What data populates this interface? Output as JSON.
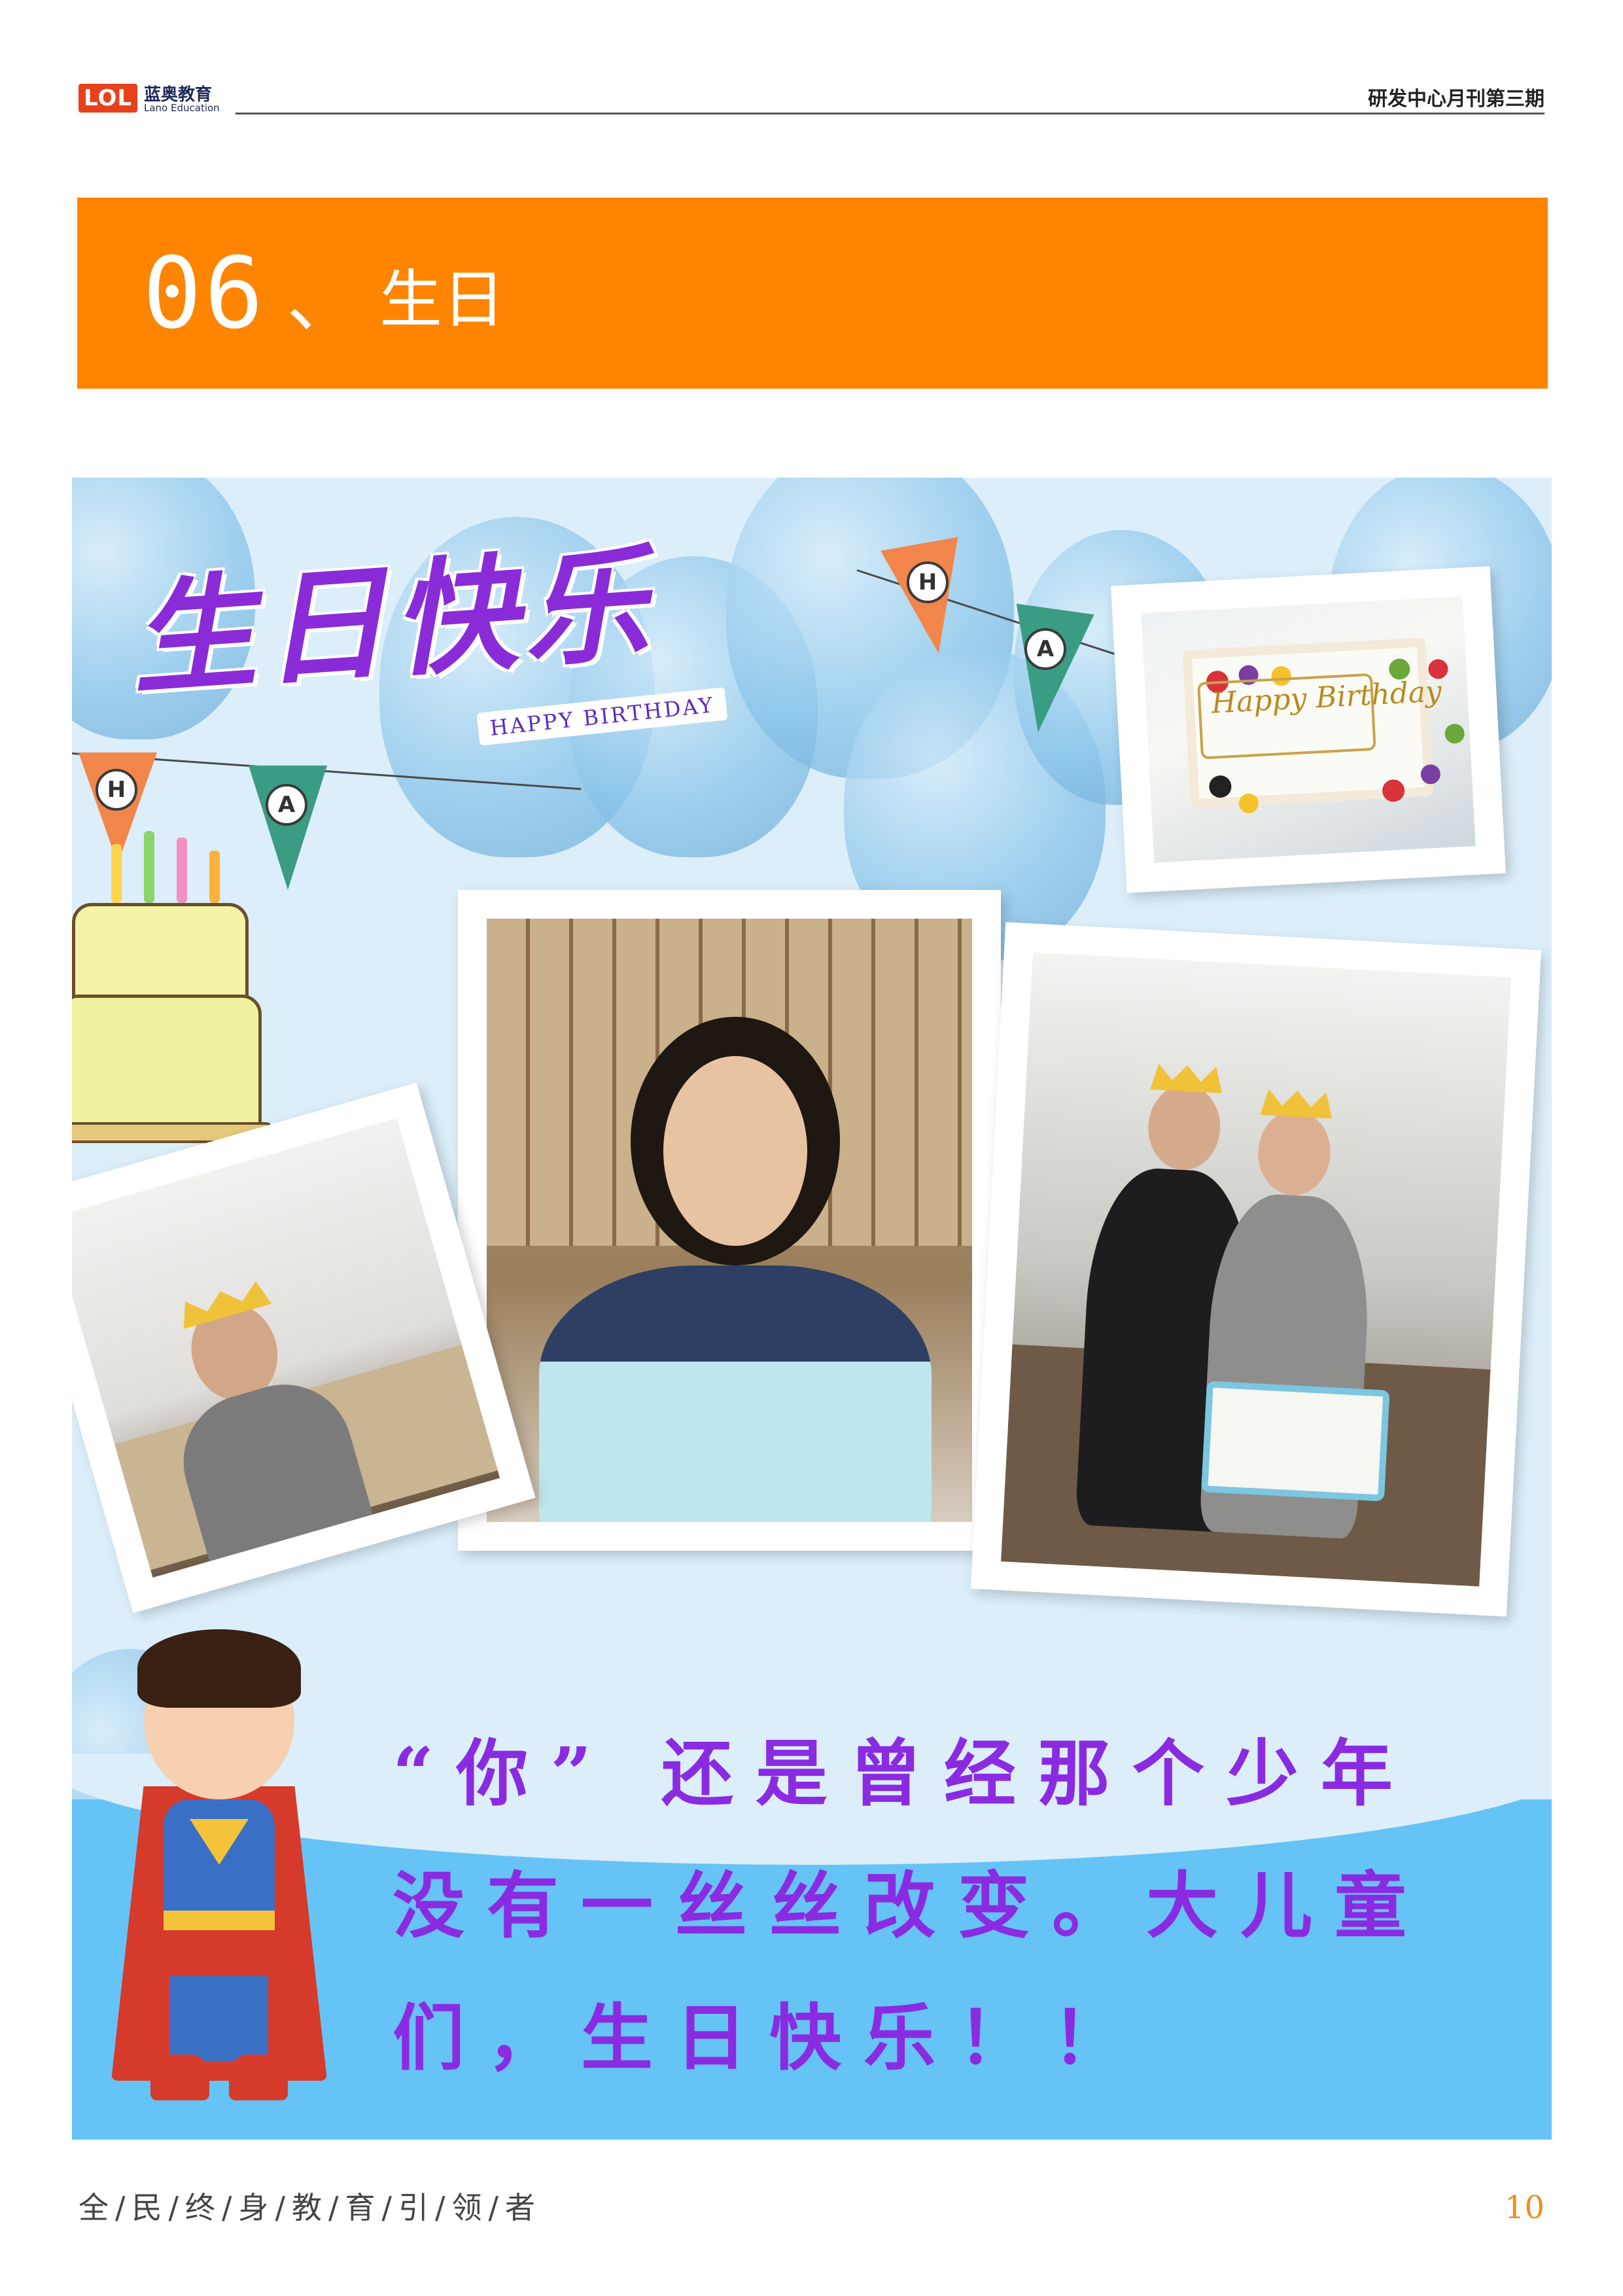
{
  "header": {
    "logo_mark": "LOL",
    "logo_cn": "蓝奥教育",
    "logo_en": "Lano Education",
    "issue": "研发中心月刊第三期"
  },
  "section": {
    "number": "06",
    "separator": "、",
    "title": "生日"
  },
  "card": {
    "title_cn": "生日快乐",
    "title_en": "HAPPY BIRTHDAY",
    "pennant_letters": [
      "H",
      "A",
      "H",
      "A"
    ],
    "cake_script": "Happy Birthday",
    "message_lines": [
      "“你” 还是曾经那个少年",
      "没有一丝丝改变。大儿童",
      "们，生日快乐！！"
    ]
  },
  "footer": {
    "slogan": "全/民/终/身/教/育/引/领/者",
    "page_number": "10"
  },
  "colors": {
    "banner": "#ff8400",
    "message": "#8a2be2",
    "page_number": "#f28c1c",
    "card_background": "#dbeefa",
    "water": "#66c3f6"
  }
}
